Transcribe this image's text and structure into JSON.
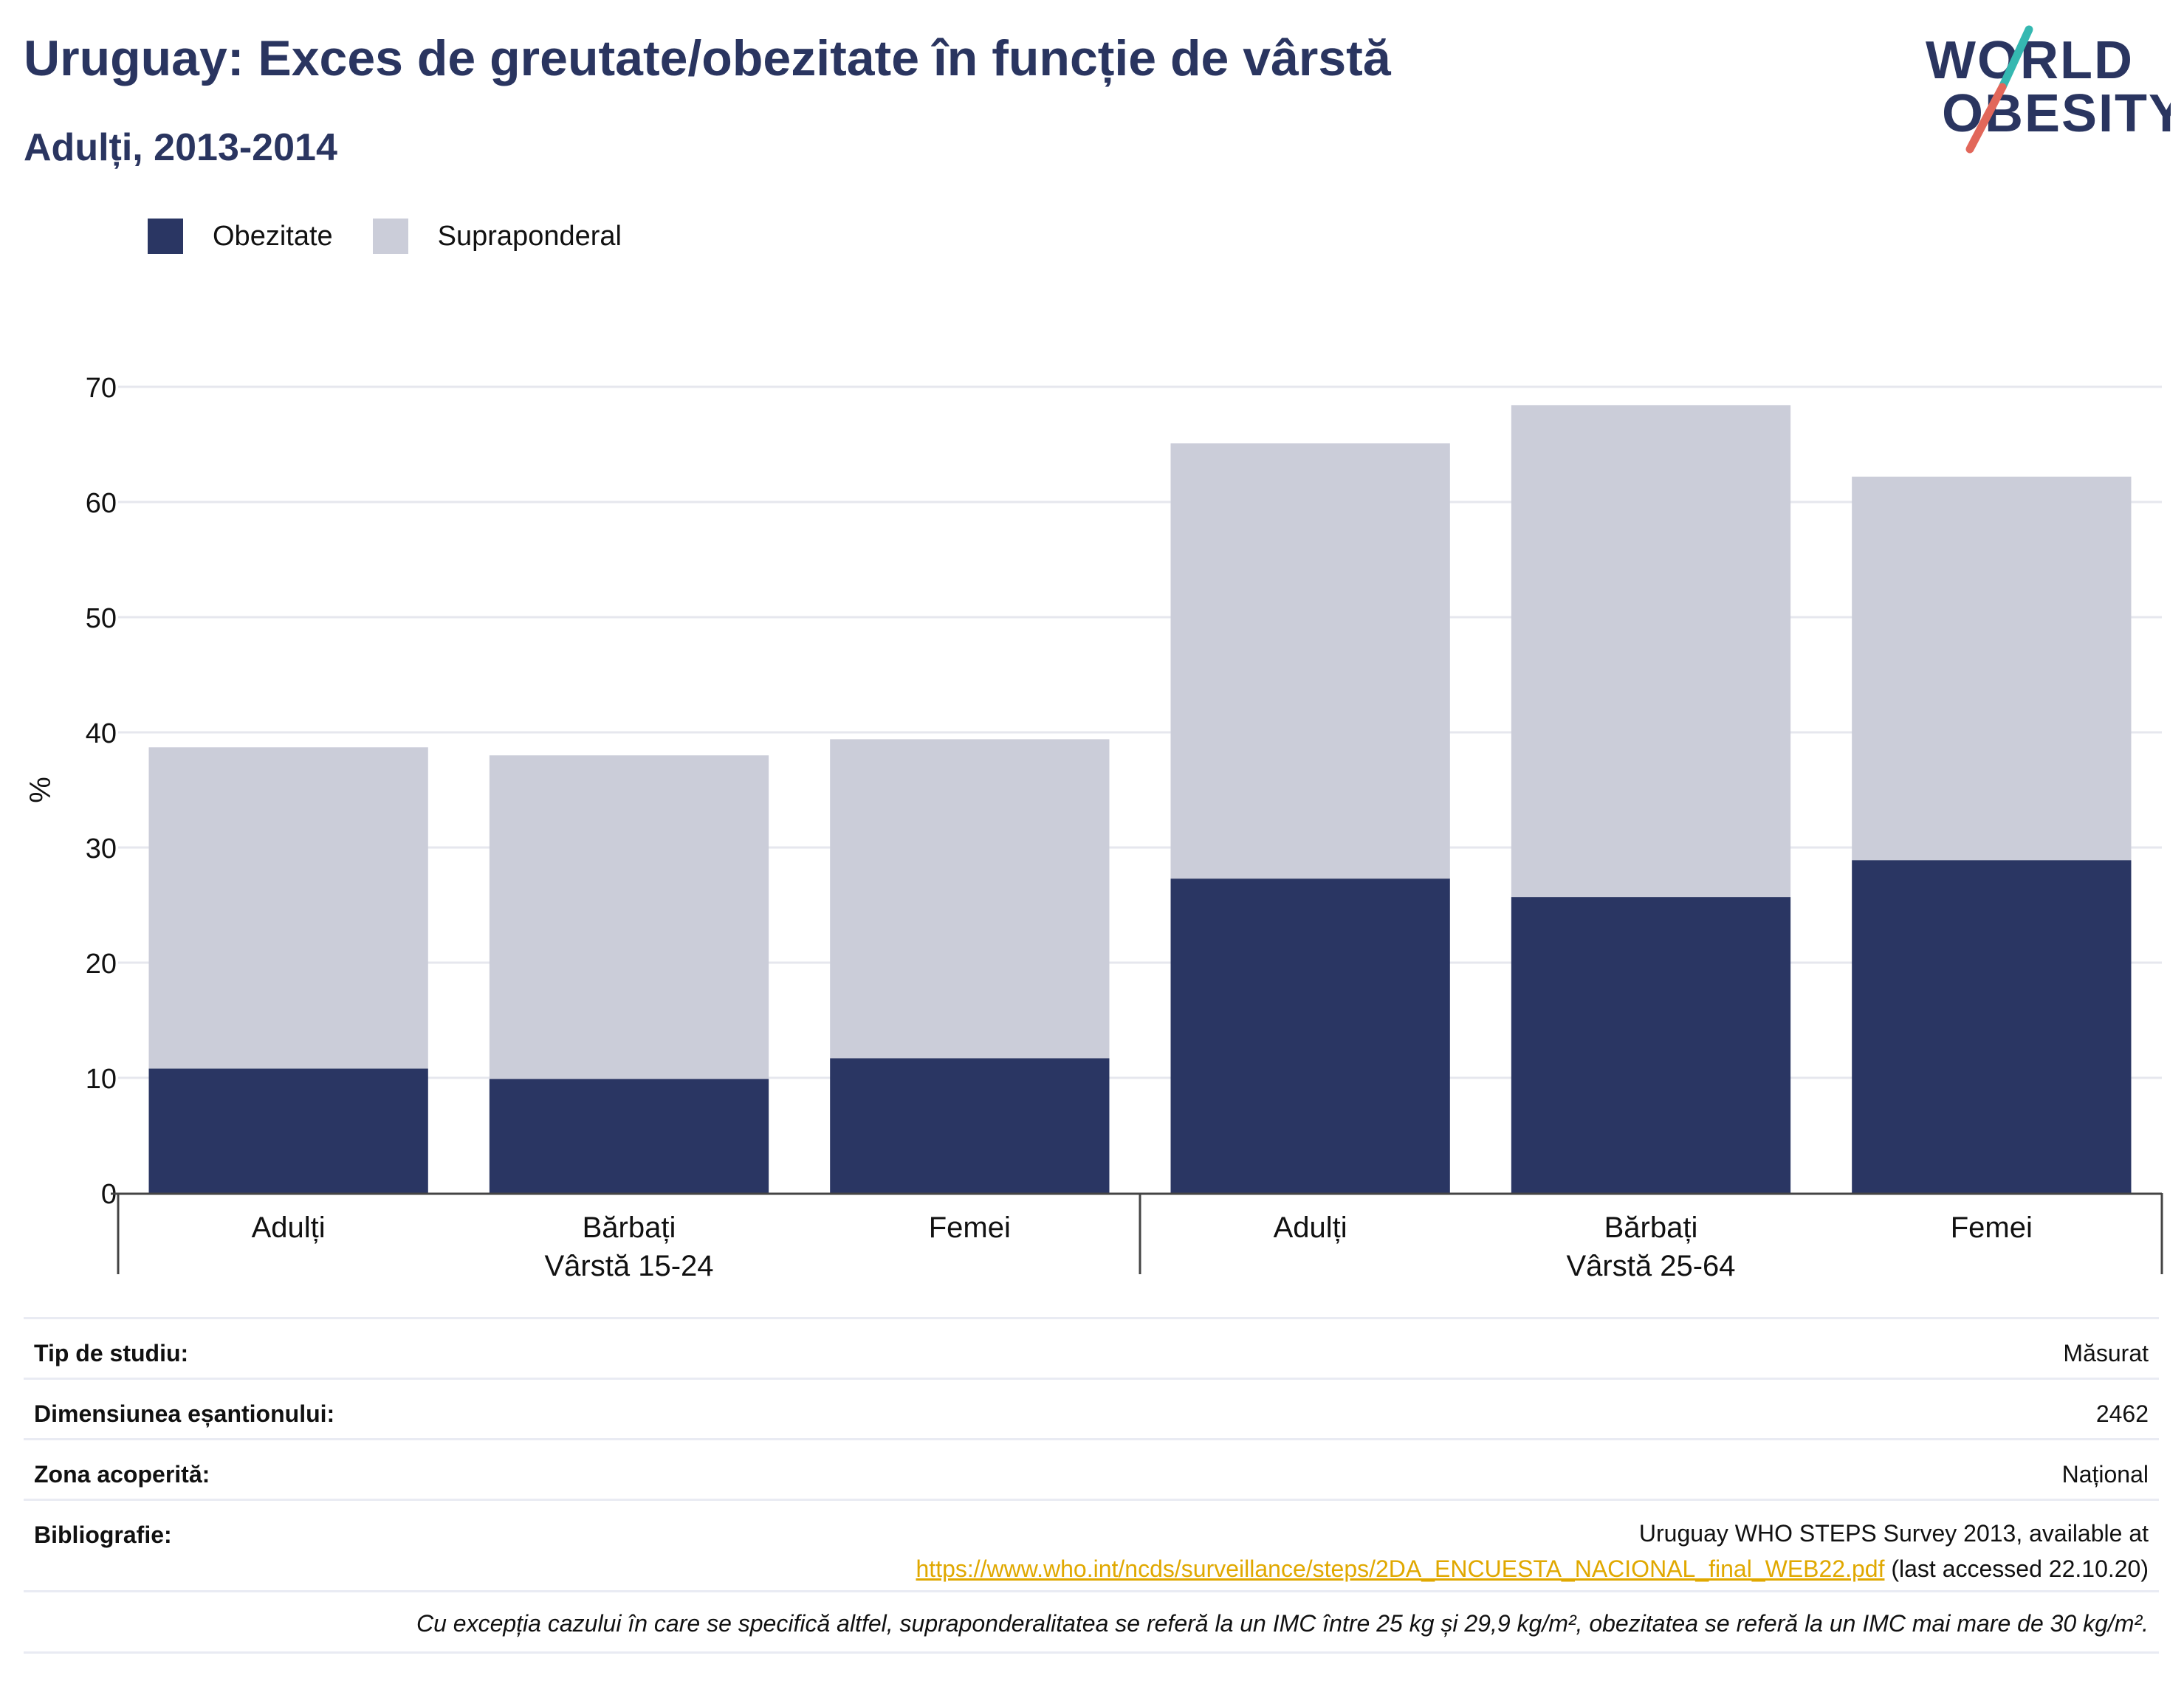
{
  "title": "Uruguay: Exces de greutate/obezitate în funcție de vârstă",
  "subtitle": "Adulți, 2013-2014",
  "logo": {
    "line1": "WORLD",
    "line2": "OBESITY"
  },
  "colors": {
    "obesity": "#2a3663",
    "overweight": "#cbcdd9",
    "title": "#2a3560",
    "link": "#e0a800",
    "logo_teal": "#35b8b1",
    "logo_coral": "#e2675a"
  },
  "chart_data": {
    "type": "bar",
    "stacked": true,
    "ylabel": "%",
    "ylim": [
      0,
      70
    ],
    "yticks": [
      0,
      10,
      20,
      30,
      40,
      50,
      60,
      70
    ],
    "grid": true,
    "legend_position": "top-left",
    "categories": [
      "Adulți",
      "Bărbați",
      "Femei",
      "Adulți",
      "Bărbați",
      "Femei"
    ],
    "groups": [
      {
        "label": "Vârstă 15-24",
        "categories": [
          0,
          1,
          2
        ]
      },
      {
        "label": "Vârstă 25-64",
        "categories": [
          3,
          4,
          5
        ]
      }
    ],
    "series": [
      {
        "name": "Obezitate",
        "values": [
          10.8,
          9.9,
          11.7,
          27.3,
          25.7,
          28.9
        ]
      },
      {
        "name": "Supraponderal",
        "values": [
          27.9,
          28.1,
          27.7,
          37.8,
          42.7,
          33.3
        ]
      }
    ]
  },
  "info": {
    "study_type_label": "Tip de studiu:",
    "study_type_value": "Măsurat",
    "sample_size_label": "Dimensiunea eșantionului:",
    "sample_size_value": "2462",
    "area_label": "Zona acoperită:",
    "area_value": "Național",
    "bibliography_label": "Bibliografie:",
    "bibliography_text": "Uruguay WHO STEPS Survey 2013, available at",
    "bibliography_link": "https://www.who.int/ncds/surveillance/steps/2DA_ENCUESTA_NACIONAL_final_WEB22.pdf",
    "bibliography_suffix": " (last accessed 22.10.20)",
    "footnote": "Cu excepția cazului în care se specifică altfel, supraponderalitatea se referă la un IMC între 25 kg și 29,9 kg/m², obezitatea se referă la un IMC mai mare de 30 kg/m²."
  }
}
